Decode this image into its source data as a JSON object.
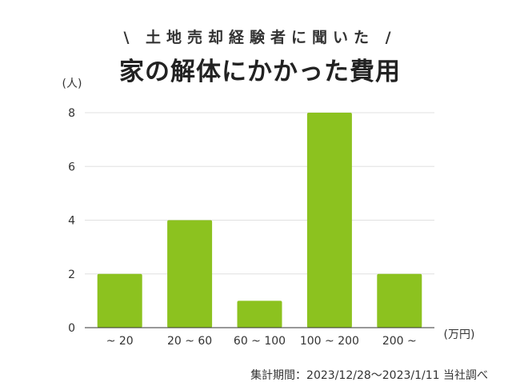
{
  "header": {
    "subtitle": "\\ 土地売却経験者に聞いた /",
    "title": "家の解体にかかった費用"
  },
  "footnote": "集計期間：2023/12/28〜2023/1/11 当社調べ",
  "colors": {
    "bar": "#8cc21f",
    "grid": "#e0e0e0",
    "axis": "#333333",
    "text": "#333333"
  },
  "chart_data": {
    "type": "bar",
    "title": "家の解体にかかった費用",
    "subtitle": "\\ 土地売却経験者に聞いた /",
    "categories": [
      "~ 20",
      "20 ~ 60",
      "60 ~ 100",
      "100 ~ 200",
      "200 ~"
    ],
    "values": [
      2,
      4,
      1,
      8,
      2
    ],
    "xlabel": "(万円)",
    "ylabel": "(人)",
    "ylim": [
      0,
      8
    ],
    "yticks": [
      0,
      2,
      4,
      6,
      8
    ],
    "grid": true,
    "legend": "none"
  }
}
